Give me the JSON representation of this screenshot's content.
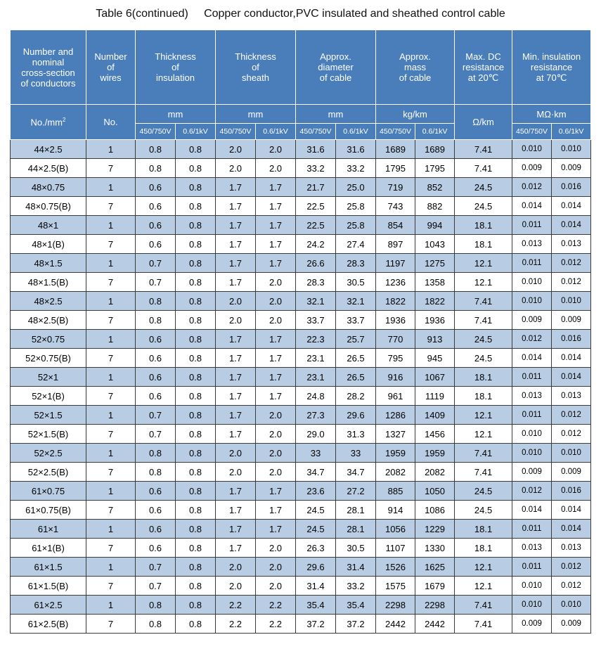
{
  "title": "Table 6(continued)     Copper conductor,PVC insulated and sheathed control cable",
  "headers": {
    "col1": [
      "Number and",
      "nominal",
      "cross-section",
      "of conductors"
    ],
    "col2": [
      "Number",
      "of",
      "wires"
    ],
    "col3": [
      "Thickness",
      "of",
      "insulation"
    ],
    "col4": [
      "Thickness",
      "of",
      "sheath"
    ],
    "col5": [
      "Approx.",
      "diameter",
      "of cable"
    ],
    "col6": [
      "Approx.",
      "mass",
      "of cable"
    ],
    "col7": [
      "Max. DC",
      "resistance",
      "at 20℃"
    ],
    "col8": [
      "Min. insulation",
      "resistance",
      "at 70℃"
    ]
  },
  "units": {
    "no_mm": "No./mm",
    "no_mm_sup": "2",
    "no": "No.",
    "thick_ins": "mm",
    "thick_sheath": "mm",
    "diameter": "mm",
    "mass": "kg/km",
    "resistance": "Ω/km",
    "insulation": "MΩ·km"
  },
  "voltage": {
    "a": "450/750V",
    "b": "0.6/1kV"
  },
  "rows": [
    [
      "44×2.5",
      "1",
      "0.8",
      "0.8",
      "2.0",
      "2.0",
      "31.6",
      "31.6",
      "1689",
      "1689",
      "7.41",
      "0.010",
      "0.010"
    ],
    [
      "44×2.5(B)",
      "7",
      "0.8",
      "0.8",
      "2.0",
      "2.0",
      "33.2",
      "33.2",
      "1795",
      "1795",
      "7.41",
      "0.009",
      "0.009"
    ],
    [
      "48×0.75",
      "1",
      "0.6",
      "0.8",
      "1.7",
      "1.7",
      "21.7",
      "25.0",
      "719",
      "852",
      "24.5",
      "0.012",
      "0.016"
    ],
    [
      "48×0.75(B)",
      "7",
      "0.6",
      "0.8",
      "1.7",
      "1.7",
      "22.5",
      "25.8",
      "743",
      "882",
      "24.5",
      "0.014",
      "0.014"
    ],
    [
      "48×1",
      "1",
      "0.6",
      "0.8",
      "1.7",
      "1.7",
      "22.5",
      "25.8",
      "854",
      "994",
      "18.1",
      "0.011",
      "0.014"
    ],
    [
      "48×1(B)",
      "7",
      "0.6",
      "0.8",
      "1.7",
      "1.7",
      "24.2",
      "27.4",
      "897",
      "1043",
      "18.1",
      "0.013",
      "0.013"
    ],
    [
      "48×1.5",
      "1",
      "0.7",
      "0.8",
      "1.7",
      "1.7",
      "26.6",
      "28.3",
      "1197",
      "1275",
      "12.1",
      "0.011",
      "0.012"
    ],
    [
      "48×1.5(B)",
      "7",
      "0.7",
      "0.8",
      "1.7",
      "2.0",
      "28.3",
      "30.5",
      "1236",
      "1358",
      "12.1",
      "0.010",
      "0.012"
    ],
    [
      "48×2.5",
      "1",
      "0.8",
      "0.8",
      "2.0",
      "2.0",
      "32.1",
      "32.1",
      "1822",
      "1822",
      "7.41",
      "0.010",
      "0.010"
    ],
    [
      "48×2.5(B)",
      "7",
      "0.8",
      "0.8",
      "2.0",
      "2.0",
      "33.7",
      "33.7",
      "1936",
      "1936",
      "7.41",
      "0.009",
      "0.009"
    ],
    [
      "52×0.75",
      "1",
      "0.6",
      "0.8",
      "1.7",
      "1.7",
      "22.3",
      "25.7",
      "770",
      "913",
      "24.5",
      "0.012",
      "0.016"
    ],
    [
      "52×0.75(B)",
      "7",
      "0.6",
      "0.8",
      "1.7",
      "1.7",
      "23.1",
      "26.5",
      "795",
      "945",
      "24.5",
      "0.014",
      "0.014"
    ],
    [
      "52×1",
      "1",
      "0.6",
      "0.8",
      "1.7",
      "1.7",
      "23.1",
      "26.5",
      "916",
      "1067",
      "18.1",
      "0.011",
      "0.014"
    ],
    [
      "52×1(B)",
      "7",
      "0.6",
      "0.8",
      "1.7",
      "1.7",
      "24.8",
      "28.2",
      "961",
      "1119",
      "18.1",
      "0.013",
      "0.013"
    ],
    [
      "52×1.5",
      "1",
      "0.7",
      "0.8",
      "1.7",
      "2.0",
      "27.3",
      "29.6",
      "1286",
      "1409",
      "12.1",
      "0.011",
      "0.012"
    ],
    [
      "52×1.5(B)",
      "7",
      "0.7",
      "0.8",
      "1.7",
      "2.0",
      "29.0",
      "31.3",
      "1327",
      "1456",
      "12.1",
      "0.010",
      "0.012"
    ],
    [
      "52×2.5",
      "1",
      "0.8",
      "0.8",
      "2.0",
      "2.0",
      "33",
      "33",
      "1959",
      "1959",
      "7.41",
      "0.010",
      "0.010"
    ],
    [
      "52×2.5(B)",
      "7",
      "0.8",
      "0.8",
      "2.0",
      "2.0",
      "34.7",
      "34.7",
      "2082",
      "2082",
      "7.41",
      "0.009",
      "0.009"
    ],
    [
      "61×0.75",
      "1",
      "0.6",
      "0.8",
      "1.7",
      "1.7",
      "23.6",
      "27.2",
      "885",
      "1050",
      "24.5",
      "0.012",
      "0.016"
    ],
    [
      "61×0.75(B)",
      "7",
      "0.6",
      "0.8",
      "1.7",
      "1.7",
      "24.5",
      "28.1",
      "914",
      "1086",
      "24.5",
      "0.014",
      "0.014"
    ],
    [
      "61×1",
      "1",
      "0.6",
      "0.8",
      "1.7",
      "1.7",
      "24.5",
      "28.1",
      "1056",
      "1229",
      "18.1",
      "0.011",
      "0.014"
    ],
    [
      "61×1(B)",
      "7",
      "0.6",
      "0.8",
      "1.7",
      "2.0",
      "26.3",
      "30.5",
      "1107",
      "1330",
      "18.1",
      "0.013",
      "0.013"
    ],
    [
      "61×1.5",
      "1",
      "0.7",
      "0.8",
      "2.0",
      "2.0",
      "29.6",
      "31.4",
      "1526",
      "1625",
      "12.1",
      "0.011",
      "0.012"
    ],
    [
      "61×1.5(B)",
      "7",
      "0.7",
      "0.8",
      "2.0",
      "2.0",
      "31.4",
      "33.2",
      "1575",
      "1679",
      "12.1",
      "0.010",
      "0.012"
    ],
    [
      "61×2.5",
      "1",
      "0.8",
      "0.8",
      "2.2",
      "2.2",
      "35.4",
      "35.4",
      "2298",
      "2298",
      "7.41",
      "0.010",
      "0.010"
    ],
    [
      "61×2.5(B)",
      "7",
      "0.8",
      "0.8",
      "2.2",
      "2.2",
      "37.2",
      "37.2",
      "2442",
      "2442",
      "7.41",
      "0.009",
      "0.009"
    ]
  ]
}
